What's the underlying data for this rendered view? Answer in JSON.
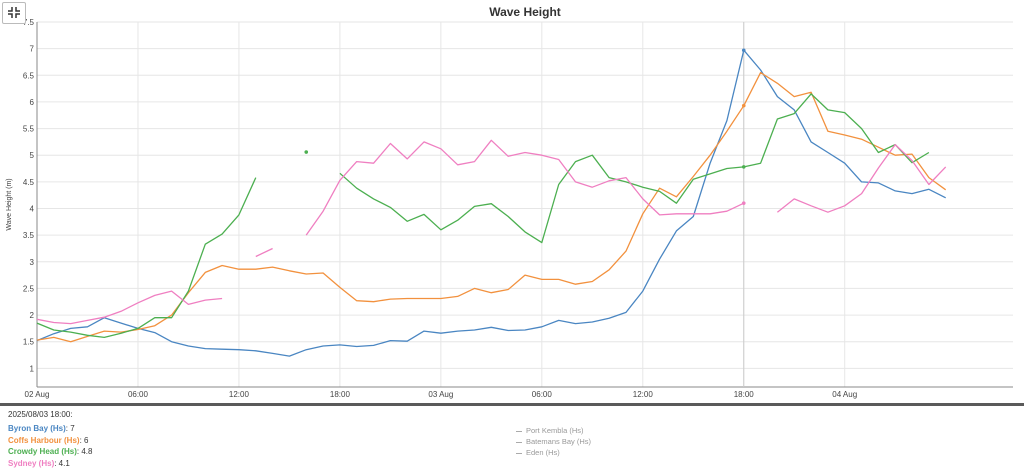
{
  "ui": {
    "collapse_icon": "collapse-arrows-icon"
  },
  "chart_data": {
    "type": "line",
    "title": "Wave Height",
    "ylabel": "Wave Height (m)",
    "xlabel": "",
    "ylim": [
      0.65,
      7.5
    ],
    "xlim": [
      0,
      58
    ],
    "x_unit": "hours from 2025-08-02 00:00",
    "y_ticks": [
      "1",
      "1.5",
      "2",
      "2.5",
      "3",
      "3.5",
      "4",
      "4.5",
      "5",
      "5.5",
      "6",
      "6.5",
      "7",
      "7.5"
    ],
    "x_ticks": [
      {
        "x": 0,
        "label": "02 Aug"
      },
      {
        "x": 6,
        "label": "06:00"
      },
      {
        "x": 12,
        "label": "12:00"
      },
      {
        "x": 18,
        "label": "18:00"
      },
      {
        "x": 24,
        "label": "03 Aug"
      },
      {
        "x": 30,
        "label": "06:00"
      },
      {
        "x": 36,
        "label": "12:00"
      },
      {
        "x": 42,
        "label": "18:00"
      },
      {
        "x": 48,
        "label": "04 Aug"
      }
    ],
    "grid": true,
    "crosshair_x": 42,
    "series": [
      {
        "name": "Byron Bay (Hs)",
        "color": "#4a86c2",
        "segments": [
          [
            [
              0,
              1.52
            ],
            [
              1,
              1.65
            ],
            [
              2,
              1.75
            ],
            [
              3,
              1.78
            ],
            [
              4,
              1.95
            ],
            [
              5,
              1.85
            ],
            [
              6,
              1.75
            ],
            [
              7,
              1.67
            ],
            [
              8,
              1.5
            ],
            [
              9,
              1.42
            ],
            [
              10,
              1.37
            ],
            [
              11,
              1.36
            ],
            [
              12,
              1.35
            ],
            [
              13,
              1.33
            ],
            [
              14,
              1.28
            ],
            [
              15,
              1.23
            ],
            [
              16,
              1.35
            ],
            [
              17,
              1.42
            ],
            [
              18,
              1.44
            ],
            [
              19,
              1.41
            ],
            [
              20,
              1.43
            ],
            [
              21,
              1.52
            ],
            [
              22,
              1.51
            ],
            [
              23,
              1.7
            ],
            [
              24,
              1.66
            ],
            [
              25,
              1.7
            ],
            [
              26,
              1.72
            ],
            [
              27,
              1.77
            ],
            [
              28,
              1.71
            ],
            [
              29,
              1.72
            ],
            [
              30,
              1.78
            ],
            [
              31,
              1.9
            ],
            [
              32,
              1.84
            ],
            [
              33,
              1.87
            ],
            [
              34,
              1.94
            ],
            [
              35,
              2.05
            ],
            [
              36,
              2.45
            ],
            [
              37,
              3.05
            ],
            [
              38,
              3.58
            ],
            [
              39,
              3.85
            ],
            [
              40,
              4.85
            ],
            [
              41,
              5.65
            ],
            [
              42,
              6.97
            ],
            [
              43,
              6.6
            ],
            [
              44,
              6.1
            ],
            [
              45,
              5.85
            ],
            [
              46,
              5.25
            ],
            [
              47,
              5.05
            ],
            [
              48,
              4.85
            ],
            [
              49,
              4.5
            ],
            [
              50,
              4.48
            ],
            [
              51,
              4.33
            ],
            [
              52,
              4.28
            ],
            [
              53,
              4.36
            ],
            [
              54,
              4.2
            ]
          ]
        ],
        "markers": [
          [
            42,
            6.97
          ]
        ]
      },
      {
        "name": "Coffs Harbour (Hs)",
        "color": "#f2913e",
        "segments": [
          [
            [
              0,
              1.53
            ],
            [
              1,
              1.58
            ],
            [
              2,
              1.5
            ],
            [
              3,
              1.6
            ],
            [
              4,
              1.7
            ],
            [
              5,
              1.68
            ],
            [
              6,
              1.73
            ],
            [
              7,
              1.8
            ],
            [
              8,
              2.0
            ],
            [
              9,
              2.42
            ],
            [
              10,
              2.8
            ],
            [
              11,
              2.93
            ],
            [
              12,
              2.86
            ],
            [
              13,
              2.86
            ],
            [
              14,
              2.9
            ],
            [
              15,
              2.83
            ],
            [
              16,
              2.77
            ],
            [
              17,
              2.79
            ],
            [
              18,
              2.52
            ],
            [
              19,
              2.27
            ],
            [
              20,
              2.25
            ],
            [
              21,
              2.3
            ],
            [
              22,
              2.31
            ],
            [
              23,
              2.31
            ],
            [
              24,
              2.31
            ],
            [
              25,
              2.35
            ],
            [
              26,
              2.5
            ],
            [
              27,
              2.42
            ],
            [
              28,
              2.48
            ],
            [
              29,
              2.75
            ],
            [
              30,
              2.67
            ],
            [
              31,
              2.67
            ],
            [
              32,
              2.58
            ],
            [
              33,
              2.63
            ],
            [
              34,
              2.85
            ],
            [
              35,
              3.2
            ],
            [
              36,
              3.9
            ],
            [
              37,
              4.38
            ],
            [
              38,
              4.22
            ],
            [
              39,
              4.6
            ],
            [
              40,
              5.0
            ],
            [
              41,
              5.45
            ],
            [
              42,
              5.93
            ],
            [
              43,
              6.55
            ],
            [
              44,
              6.35
            ],
            [
              45,
              6.1
            ],
            [
              46,
              6.18
            ],
            [
              47,
              5.45
            ],
            [
              48,
              5.38
            ],
            [
              49,
              5.3
            ],
            [
              50,
              5.15
            ],
            [
              51,
              5.0
            ],
            [
              52,
              5.02
            ],
            [
              53,
              4.58
            ],
            [
              54,
              4.35
            ]
          ]
        ],
        "markers": [
          [
            42,
            5.93
          ]
        ]
      },
      {
        "name": "Crowdy Head (Hs)",
        "color": "#4caf50",
        "segments": [
          [
            [
              0,
              1.85
            ],
            [
              1,
              1.72
            ],
            [
              2,
              1.68
            ],
            [
              3,
              1.62
            ],
            [
              4,
              1.58
            ],
            [
              5,
              1.66
            ],
            [
              6,
              1.75
            ],
            [
              7,
              1.95
            ],
            [
              8,
              1.95
            ],
            [
              9,
              2.45
            ],
            [
              10,
              3.33
            ],
            [
              11,
              3.52
            ],
            [
              12,
              3.88
            ],
            [
              13,
              4.58
            ]
          ],
          [
            [
              18,
              4.66
            ],
            [
              19,
              4.38
            ],
            [
              20,
              4.18
            ],
            [
              21,
              4.02
            ],
            [
              22,
              3.76
            ],
            [
              23,
              3.89
            ],
            [
              24,
              3.6
            ],
            [
              25,
              3.78
            ],
            [
              26,
              4.04
            ],
            [
              27,
              4.09
            ],
            [
              28,
              3.85
            ],
            [
              29,
              3.56
            ],
            [
              30,
              3.36
            ],
            [
              31,
              4.45
            ],
            [
              32,
              4.88
            ],
            [
              33,
              5.0
            ],
            [
              34,
              4.58
            ],
            [
              35,
              4.5
            ],
            [
              36,
              4.4
            ],
            [
              37,
              4.32
            ],
            [
              38,
              4.1
            ],
            [
              39,
              4.55
            ],
            [
              40,
              4.65
            ],
            [
              41,
              4.75
            ],
            [
              42,
              4.78
            ],
            [
              43,
              4.85
            ],
            [
              44,
              5.68
            ],
            [
              45,
              5.78
            ],
            [
              46,
              6.15
            ],
            [
              47,
              5.85
            ],
            [
              48,
              5.8
            ],
            [
              49,
              5.5
            ],
            [
              50,
              5.05
            ],
            [
              51,
              5.2
            ],
            [
              52,
              4.86
            ],
            [
              53,
              5.05
            ]
          ]
        ],
        "markers": [
          [
            42,
            4.78
          ],
          [
            16,
            5.06
          ]
        ]
      },
      {
        "name": "Sydney (Hs)",
        "color": "#ef7fc1",
        "segments": [
          [
            [
              0,
              1.92
            ],
            [
              1,
              1.86
            ],
            [
              2,
              1.84
            ],
            [
              3,
              1.9
            ],
            [
              4,
              1.96
            ],
            [
              5,
              2.07
            ],
            [
              6,
              2.23
            ],
            [
              7,
              2.37
            ],
            [
              8,
              2.45
            ],
            [
              9,
              2.2
            ],
            [
              10,
              2.28
            ],
            [
              11,
              2.31
            ]
          ],
          [
            [
              13,
              3.1
            ],
            [
              14,
              3.25
            ]
          ],
          [
            [
              16,
              3.5
            ],
            [
              17,
              3.95
            ],
            [
              18,
              4.53
            ],
            [
              19,
              4.88
            ],
            [
              20,
              4.85
            ],
            [
              21,
              5.22
            ],
            [
              22,
              4.93
            ],
            [
              23,
              5.25
            ],
            [
              24,
              5.12
            ],
            [
              25,
              4.82
            ],
            [
              26,
              4.88
            ],
            [
              27,
              5.28
            ],
            [
              28,
              4.98
            ],
            [
              29,
              5.05
            ],
            [
              30,
              5.0
            ],
            [
              31,
              4.92
            ],
            [
              32,
              4.5
            ],
            [
              33,
              4.4
            ],
            [
              34,
              4.52
            ],
            [
              35,
              4.58
            ],
            [
              36,
              4.18
            ],
            [
              37,
              3.88
            ],
            [
              38,
              3.9
            ],
            [
              39,
              3.9
            ],
            [
              40,
              3.9
            ],
            [
              41,
              3.95
            ],
            [
              42,
              4.1
            ]
          ],
          [
            [
              44,
              3.93
            ],
            [
              45,
              4.18
            ],
            [
              46,
              4.05
            ],
            [
              47,
              3.93
            ],
            [
              48,
              4.05
            ],
            [
              49,
              4.28
            ],
            [
              50,
              4.76
            ],
            [
              51,
              5.2
            ],
            [
              52,
              4.9
            ],
            [
              53,
              4.45
            ],
            [
              54,
              4.78
            ]
          ]
        ],
        "markers": [
          [
            42,
            4.1
          ]
        ]
      }
    ]
  },
  "readout": {
    "timestamp": "2025/08/03 18:00:",
    "active": [
      {
        "label": "Byron Bay (Hs)",
        "value": "7",
        "color": "#4a86c2"
      },
      {
        "label": "Coffs Harbour (Hs)",
        "value": "6",
        "color": "#f2913e"
      },
      {
        "label": "Crowdy Head (Hs)",
        "value": "4.8",
        "color": "#4caf50"
      },
      {
        "label": "Sydney (Hs)",
        "value": "4.1",
        "color": "#ef7fc1"
      }
    ],
    "inactive": [
      "Port Kembla (Hs)",
      "Batemans Bay (Hs)",
      "Eden (Hs)"
    ]
  }
}
